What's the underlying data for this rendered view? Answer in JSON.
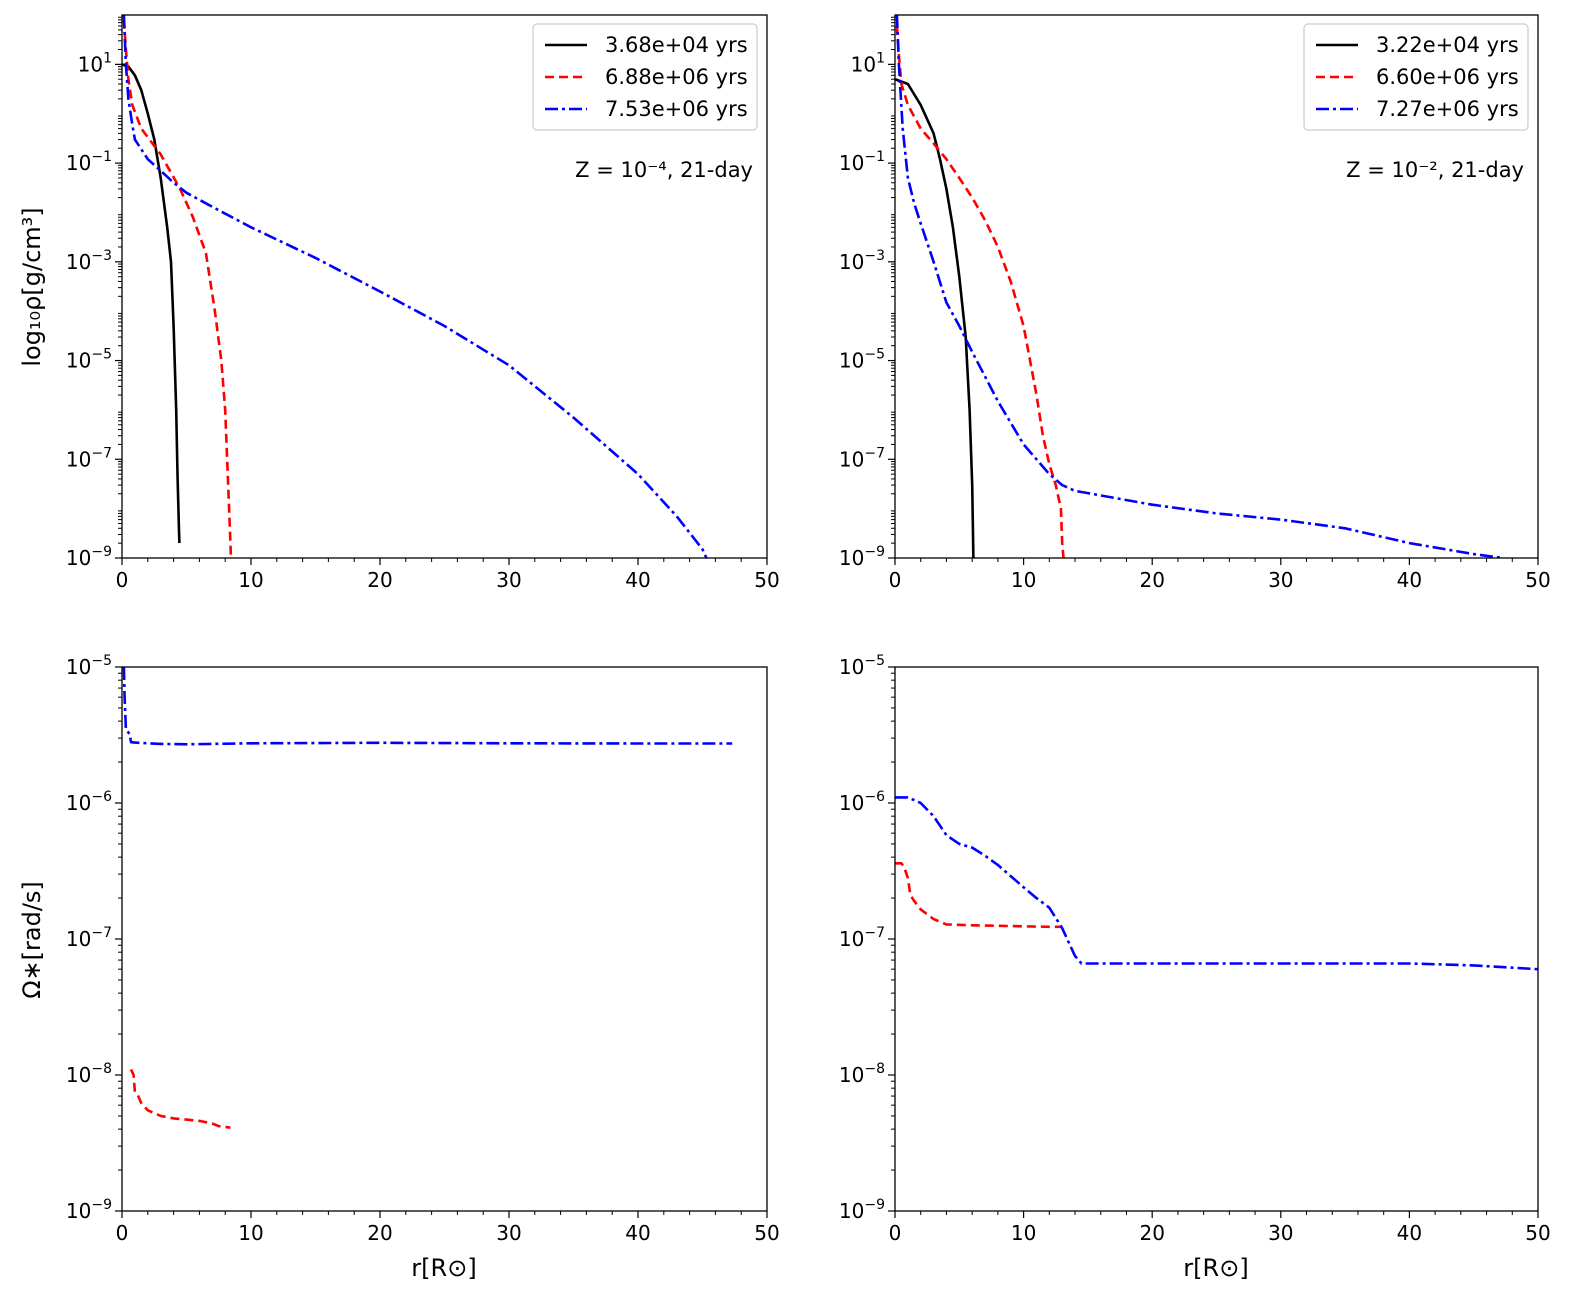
{
  "figure": {
    "ylabel_top": "log₁₀ρ[g/cm³]",
    "ylabel_bottom": "Ω∗[rad/s]",
    "xlabel": "r[R⊙]"
  },
  "chart_data": [
    {
      "type": "line",
      "panel": "top-left",
      "title": "",
      "annotation": "Z = 10⁻⁴, 21-day",
      "xlabel": "",
      "ylabel": "log₁₀ρ[g/cm³]",
      "xlim": [
        0,
        50
      ],
      "ylim": [
        1e-09,
        100
      ],
      "yscale": "log",
      "xticks": [
        "0",
        "10",
        "20",
        "30",
        "40",
        "50"
      ],
      "yticks": [
        {
          "label_base": "10",
          "label_exp": "1",
          "value": 10
        },
        {
          "label_base": "10",
          "label_exp": "−1",
          "value": 0.1
        },
        {
          "label_base": "10",
          "label_exp": "−3",
          "value": 0.001
        },
        {
          "label_base": "10",
          "label_exp": "−5",
          "value": 1e-05
        },
        {
          "label_base": "10",
          "label_exp": "−7",
          "value": 1e-07
        },
        {
          "label_base": "10",
          "label_exp": "−9",
          "value": 1e-09
        }
      ],
      "legend": "top-right",
      "series": [
        {
          "name": "3.68e+04 yrs",
          "color": "#000000",
          "style": "solid",
          "x": [
            0,
            0.5,
            1,
            1.5,
            2,
            2.5,
            3,
            3.5,
            3.8,
            4.0,
            4.2,
            4.3,
            4.4,
            4.45
          ],
          "y": [
            10,
            9,
            6,
            3,
            1,
            0.3,
            0.05,
            0.005,
            0.001,
            5e-05,
            1e-06,
            5e-08,
            5e-09,
            2e-09
          ]
        },
        {
          "name": "6.88e+06 yrs",
          "color": "#ff0000",
          "style": "dashed",
          "x": [
            0.15,
            0.3,
            0.5,
            0.8,
            1.5,
            3,
            4.5,
            5.5,
            6.5,
            7.2,
            7.7,
            8.0,
            8.3,
            8.45
          ],
          "y": [
            80,
            20,
            5,
            1.5,
            0.5,
            0.15,
            0.03,
            0.008,
            0.0015,
            0.0001,
            1e-05,
            1e-06,
            1e-08,
            1e-09
          ]
        },
        {
          "name": "7.53e+06 yrs",
          "color": "#0000ff",
          "style": "dashdot",
          "x": [
            0.15,
            0.3,
            0.5,
            0.8,
            1,
            2,
            3,
            4,
            5,
            7,
            10,
            15,
            20,
            25,
            30,
            35,
            40,
            43,
            45,
            45.3
          ],
          "y": [
            100,
            10,
            2,
            0.6,
            0.3,
            0.12,
            0.07,
            0.04,
            0.025,
            0.013,
            0.005,
            0.0012,
            0.00025,
            5e-05,
            8e-06,
            7e-07,
            5e-08,
            7e-09,
            1.5e-09,
            1e-09
          ]
        }
      ]
    },
    {
      "type": "line",
      "panel": "top-right",
      "title": "",
      "annotation": "Z = 10⁻², 21-day",
      "xlabel": "",
      "ylabel": "",
      "xlim": [
        0,
        50
      ],
      "ylim": [
        1e-09,
        100
      ],
      "yscale": "log",
      "xticks": [
        "0",
        "10",
        "20",
        "30",
        "40",
        "50"
      ],
      "yticks": [
        {
          "label_base": "10",
          "label_exp": "1",
          "value": 10
        },
        {
          "label_base": "10",
          "label_exp": "−1",
          "value": 0.1
        },
        {
          "label_base": "10",
          "label_exp": "−3",
          "value": 0.001
        },
        {
          "label_base": "10",
          "label_exp": "−5",
          "value": 1e-05
        },
        {
          "label_base": "10",
          "label_exp": "−7",
          "value": 1e-07
        },
        {
          "label_base": "10",
          "label_exp": "−9",
          "value": 1e-09
        }
      ],
      "legend": "top-right",
      "series": [
        {
          "name": "3.22e+04 yrs",
          "color": "#000000",
          "style": "solid",
          "x": [
            0,
            1,
            2,
            3,
            3.5,
            4,
            4.5,
            5,
            5.5,
            5.8,
            6.0,
            6.1,
            6.2
          ],
          "y": [
            5,
            4,
            1.5,
            0.4,
            0.12,
            0.03,
            0.005,
            0.0005,
            3e-05,
            1e-06,
            3e-08,
            1e-09,
            5e-10
          ]
        },
        {
          "name": "6.60e+06 yrs",
          "color": "#ff0000",
          "style": "dashed",
          "x": [
            0.15,
            0.3,
            0.5,
            1,
            2,
            3,
            4,
            5,
            6,
            7,
            8,
            9,
            10,
            11,
            11.5,
            12,
            12.5,
            12.9,
            13.0,
            13.1
          ],
          "y": [
            60,
            15,
            4,
            1.5,
            0.5,
            0.25,
            0.12,
            0.05,
            0.02,
            0.007,
            0.002,
            0.0004,
            5e-05,
            2e-06,
            3e-07,
            8e-08,
            3e-08,
            1e-08,
            2e-09,
            1e-09
          ]
        },
        {
          "name": "7.27e+06 yrs",
          "color": "#0000ff",
          "style": "dashdot",
          "x": [
            0.15,
            0.3,
            0.6,
            1,
            1.5,
            2,
            3,
            4,
            5,
            6,
            8,
            10,
            12,
            13,
            14,
            20,
            25,
            30,
            35,
            40,
            45,
            47.3
          ],
          "y": [
            100,
            10,
            0.5,
            0.05,
            0.015,
            0.006,
            0.001,
            0.00015,
            5e-05,
            1.5e-05,
            1.5e-06,
            2e-07,
            5e-08,
            3e-08,
            2.3e-08,
            1.2e-08,
            8e-09,
            6e-09,
            4e-09,
            2e-09,
            1.2e-09,
            1e-09
          ]
        }
      ]
    },
    {
      "type": "line",
      "panel": "bottom-left",
      "title": "",
      "xlabel": "r[R⊙]",
      "ylabel": "Ω∗[rad/s]",
      "xlim": [
        0,
        50
      ],
      "ylim": [
        1e-09,
        1e-05
      ],
      "yscale": "log",
      "xticks": [
        "0",
        "10",
        "20",
        "30",
        "40",
        "50"
      ],
      "yticks": [
        {
          "label_base": "10",
          "label_exp": "−5",
          "value": 1e-05
        },
        {
          "label_base": "10",
          "label_exp": "−6",
          "value": 1e-06
        },
        {
          "label_base": "10",
          "label_exp": "−7",
          "value": 1e-07
        },
        {
          "label_base": "10",
          "label_exp": "−8",
          "value": 1e-08
        },
        {
          "label_base": "10",
          "label_exp": "−9",
          "value": 1e-09
        }
      ],
      "series": [
        {
          "name": "6.88e+06 yrs",
          "color": "#ff0000",
          "style": "dashed",
          "x": [
            0.7,
            0.9,
            1.0,
            1.2,
            1.5,
            2,
            3,
            4,
            5,
            6,
            7,
            7.5,
            8,
            8.4
          ],
          "y": [
            1.1e-08,
            1e-08,
            7.5e-09,
            7.2e-09,
            6.2e-09,
            5.5e-09,
            5e-09,
            4.8e-09,
            4.7e-09,
            4.6e-09,
            4.4e-09,
            4.2e-09,
            4.15e-09,
            4.1e-09
          ]
        },
        {
          "name": "7.53e+06 yrs",
          "color": "#0000ff",
          "style": "dashdot",
          "x": [
            0.15,
            0.2,
            0.3,
            0.5,
            0.6,
            0.7,
            1,
            2,
            3,
            5,
            10,
            20,
            30,
            40,
            47.3
          ],
          "y": [
            1e-05,
            6e-06,
            3.5e-06,
            3.3e-06,
            3.2e-06,
            2.8e-06,
            2.78e-06,
            2.75e-06,
            2.72e-06,
            2.7e-06,
            2.75e-06,
            2.77e-06,
            2.75e-06,
            2.74e-06,
            2.74e-06
          ]
        }
      ]
    },
    {
      "type": "line",
      "panel": "bottom-right",
      "title": "",
      "xlabel": "r[R⊙]",
      "ylabel": "",
      "xlim": [
        0,
        50
      ],
      "ylim": [
        1e-09,
        1e-05
      ],
      "yscale": "log",
      "xticks": [
        "0",
        "10",
        "20",
        "30",
        "40",
        "50"
      ],
      "yticks": [
        {
          "label_base": "10",
          "label_exp": "−5",
          "value": 1e-05
        },
        {
          "label_base": "10",
          "label_exp": "−6",
          "value": 1e-06
        },
        {
          "label_base": "10",
          "label_exp": "−7",
          "value": 1e-07
        },
        {
          "label_base": "10",
          "label_exp": "−8",
          "value": 1e-08
        },
        {
          "label_base": "10",
          "label_exp": "−9",
          "value": 1e-09
        }
      ],
      "series": [
        {
          "name": "6.60e+06 yrs",
          "color": "#ff0000",
          "style": "dashed",
          "x": [
            0,
            0.5,
            0.7,
            1.0,
            1.2,
            1.5,
            2,
            3,
            4,
            6,
            8,
            10,
            12,
            13.0
          ],
          "y": [
            3.6e-07,
            3.6e-07,
            3.4e-07,
            2.8e-07,
            2.1e-07,
            1.9e-07,
            1.65e-07,
            1.4e-07,
            1.28e-07,
            1.26e-07,
            1.25e-07,
            1.24e-07,
            1.23e-07,
            1.23e-07
          ]
        },
        {
          "name": "7.27e+06 yrs",
          "color": "#0000ff",
          "style": "dashdot",
          "x": [
            0,
            1,
            2,
            3,
            4,
            5,
            6,
            7,
            8,
            9,
            10,
            11,
            12,
            13,
            14,
            14.5,
            20,
            30,
            40,
            45,
            50
          ],
          "y": [
            1.1e-06,
            1.1e-06,
            1e-06,
            8e-07,
            5.8e-07,
            5e-07,
            4.7e-07,
            4.1e-07,
            3.5e-07,
            2.9e-07,
            2.4e-07,
            2e-07,
            1.7e-07,
            1.2e-07,
            7.5e-08,
            6.6e-08,
            6.6e-08,
            6.6e-08,
            6.6e-08,
            6.4e-08,
            6e-08
          ]
        }
      ]
    }
  ]
}
